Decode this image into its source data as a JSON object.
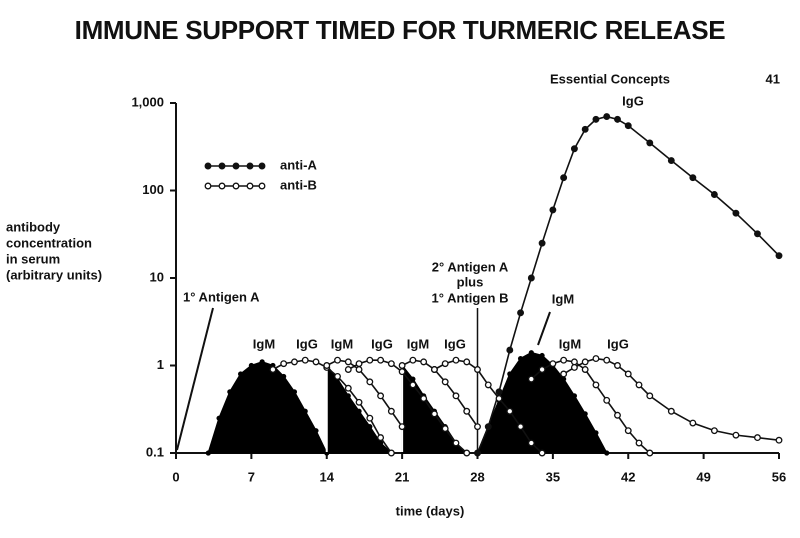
{
  "header": {
    "section": "Essential Concepts",
    "page": "41"
  },
  "chart_data": {
    "type": "line",
    "title": "IMMUNE SUPPORT TIMED FOR TURMERIC RELEASE",
    "xlabel": "time (days)",
    "ylabel": [
      "antibody",
      "concentration",
      "in serum",
      "(arbitrary units)"
    ],
    "xlim": [
      0,
      56
    ],
    "xticks": [
      0,
      7,
      14,
      21,
      28,
      35,
      42,
      49,
      56
    ],
    "ylim": [
      0.1,
      1000
    ],
    "log_y": true,
    "yticks": [
      {
        "value": 0.1,
        "label": "0.1"
      },
      1,
      10,
      100,
      {
        "value": 1000,
        "label": "1,000"
      }
    ],
    "legend": "upper left",
    "series": [
      {
        "name": "anti-A",
        "color": "#111111",
        "marker": "filled",
        "x": [
          28,
          29,
          30,
          31,
          32,
          33,
          34,
          35,
          36,
          37,
          38,
          39,
          40,
          41,
          42,
          44,
          46,
          48,
          50,
          52,
          54,
          56
        ],
        "values": [
          0.1,
          0.2,
          0.5,
          1.5,
          4,
          10,
          25,
          60,
          140,
          300,
          500,
          650,
          700,
          650,
          550,
          350,
          220,
          140,
          90,
          55,
          32,
          18
        ]
      },
      {
        "name": "anti-B",
        "color": "#111111",
        "marker": "open",
        "x": [
          9,
          10,
          11,
          12,
          13,
          14,
          15,
          16,
          17,
          18,
          19,
          20,
          null,
          14,
          15,
          16,
          17,
          18,
          19,
          20,
          21,
          null,
          16,
          17,
          18,
          19,
          20,
          21,
          22,
          23,
          24,
          25,
          26,
          27,
          null,
          21,
          22,
          23,
          24,
          25,
          26,
          27,
          28,
          null,
          24,
          25,
          26,
          27,
          28,
          29,
          30,
          31,
          32,
          33,
          34,
          null,
          33,
          34,
          35,
          36,
          37,
          38,
          39,
          40,
          41,
          42,
          43,
          44,
          null,
          36,
          37,
          38,
          39,
          40,
          41,
          42,
          43,
          44,
          46,
          48,
          50,
          52,
          54,
          56
        ],
        "values": [
          0.9,
          1.05,
          1.1,
          1.15,
          1.1,
          0.95,
          0.75,
          0.55,
          0.38,
          0.25,
          0.15,
          0.1,
          null,
          1.0,
          1.15,
          1.1,
          0.9,
          0.65,
          0.45,
          0.3,
          0.2,
          null,
          0.9,
          1.05,
          1.15,
          1.15,
          1.05,
          0.85,
          0.6,
          0.42,
          0.28,
          0.19,
          0.13,
          0.1,
          null,
          1.0,
          1.15,
          1.1,
          0.9,
          0.65,
          0.45,
          0.3,
          0.2,
          null,
          0.9,
          1.05,
          1.15,
          1.1,
          0.9,
          0.6,
          0.42,
          0.3,
          0.2,
          0.13,
          0.1,
          null,
          0.7,
          0.9,
          1.05,
          1.15,
          1.1,
          0.9,
          0.6,
          0.4,
          0.27,
          0.18,
          0.13,
          0.1,
          null,
          0.8,
          0.95,
          1.1,
          1.2,
          1.15,
          1.0,
          0.8,
          0.6,
          0.45,
          0.3,
          0.22,
          0.18,
          0.16,
          0.15,
          0.14
        ]
      }
    ],
    "areas": [
      {
        "color": "#000000",
        "x": [
          3,
          4,
          5,
          6,
          7,
          8,
          9,
          10,
          11,
          12,
          13,
          14
        ],
        "values": [
          0.1,
          0.25,
          0.5,
          0.8,
          1.0,
          1.1,
          1.0,
          0.75,
          0.5,
          0.3,
          0.18,
          0.1
        ]
      },
      {
        "color": "#000000",
        "x": [
          14,
          15,
          16,
          17,
          18,
          19,
          20
        ],
        "values": [
          1.0,
          0.7,
          0.45,
          0.3,
          0.2,
          0.13,
          0.1
        ]
      },
      {
        "color": "#000000",
        "x": [
          21,
          22,
          23,
          24,
          25,
          26,
          27
        ],
        "values": [
          1.0,
          0.7,
          0.45,
          0.3,
          0.2,
          0.13,
          0.1
        ]
      },
      {
        "color": "#000000",
        "x": [
          28,
          29,
          30,
          31,
          32,
          33,
          34,
          35,
          36,
          37,
          38,
          39,
          40
        ],
        "values": [
          0.1,
          0.2,
          0.4,
          0.8,
          1.2,
          1.4,
          1.3,
          1.0,
          0.7,
          0.45,
          0.28,
          0.17,
          0.1
        ]
      }
    ],
    "annotations": [
      "1° Antigen A",
      "2° Antigen A",
      "plus",
      "1° Antigen B",
      "IgM",
      "IgG",
      "IgM",
      "IgG",
      "IgM",
      "IgG",
      "IgG",
      "IgM",
      "IgM",
      "IgG"
    ]
  }
}
